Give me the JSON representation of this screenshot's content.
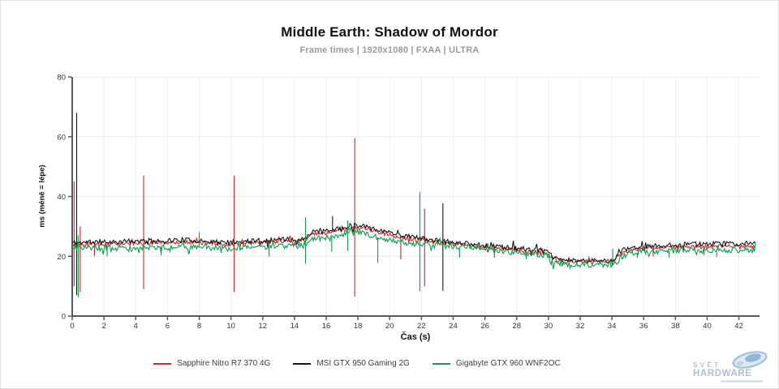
{
  "header": {
    "title": "Middle Earth: Shadow of Mordor",
    "subtitle": "Frame times | 1920x1080 | FXAA | ULTRA"
  },
  "watermark": {
    "line1": "SVĚT",
    "line2": "HARDWARE"
  },
  "colors": {
    "axis": "#5a5a5a",
    "grid_vertical": "#f0f0f0",
    "grid_horizontal": "#ebebeb",
    "tick_label": "#353535",
    "red_series": "#d2262b",
    "black_series": "#161616",
    "green_series": "#0d9d4d"
  },
  "chart_data": {
    "type": "line",
    "title": "Middle Earth: Shadow of Mordor",
    "subtitle": "Frame times | 1920x1080 | FXAA | ULTRA",
    "xlabel": "Čas (s)",
    "ylabel": "ms (méně = lépe)",
    "xlim": [
      0,
      43.3
    ],
    "ylim": [
      0,
      80
    ],
    "x_data_max": 43.1,
    "xticks": [
      0,
      2,
      4,
      6,
      8,
      10,
      12,
      14,
      16,
      18,
      20,
      22,
      24,
      26,
      28,
      30,
      32,
      34,
      36,
      38,
      40,
      42
    ],
    "yticks": [
      0,
      20,
      40,
      60,
      80
    ],
    "grid": true,
    "legend_position": "bottom",
    "series": [
      {
        "id": "r7-370",
        "name": "Sapphire Nitro R7 370 4G",
        "color": "#d2262b",
        "seed": 5,
        "jitter": 0.65,
        "baseline": [
          [
            0,
            24
          ],
          [
            1,
            24
          ],
          [
            3,
            24.2
          ],
          [
            5,
            24.5
          ],
          [
            7,
            24.8
          ],
          [
            9,
            24.3
          ],
          [
            9.8,
            23.8
          ],
          [
            11,
            24.5
          ],
          [
            13,
            25
          ],
          [
            14.6,
            25
          ],
          [
            15,
            27.3
          ],
          [
            16,
            27.8
          ],
          [
            17,
            28.8
          ],
          [
            17.7,
            29.6
          ],
          [
            18.4,
            29.6
          ],
          [
            19.5,
            27.8
          ],
          [
            20.5,
            26.5
          ],
          [
            21.5,
            25.8
          ],
          [
            23,
            24.6
          ],
          [
            25,
            23.6
          ],
          [
            27,
            22.6
          ],
          [
            29,
            21.6
          ],
          [
            29.9,
            21
          ],
          [
            30.4,
            18.7
          ],
          [
            31.5,
            18.3
          ],
          [
            33,
            18.2
          ],
          [
            34.2,
            18.5
          ],
          [
            34.7,
            21.3
          ],
          [
            36,
            22.7
          ],
          [
            38,
            23
          ],
          [
            40,
            23.2
          ],
          [
            43.1,
            23.3
          ]
        ],
        "spikes": [
          [
            0.12,
            45,
            10
          ],
          [
            0.5,
            30,
            8
          ],
          [
            1.4,
            null,
            20
          ],
          [
            4.5,
            47,
            9
          ],
          [
            10.2,
            47,
            8
          ],
          [
            17.8,
            59.5,
            6.5
          ],
          [
            20.7,
            null,
            19
          ],
          [
            22.2,
            36,
            10
          ],
          [
            26.6,
            null,
            19.5
          ],
          [
            36.6,
            null,
            20
          ],
          [
            39.8,
            null,
            20.3
          ]
        ]
      },
      {
        "id": "gtx-950",
        "name": "MSI GTX 950 Gaming 2G",
        "color": "#161616",
        "seed": 11,
        "jitter": 0.8,
        "baseline": [
          [
            0,
            24.6
          ],
          [
            1,
            24.7
          ],
          [
            3,
            24.9
          ],
          [
            5,
            25.2
          ],
          [
            7,
            25.5
          ],
          [
            9,
            24.9
          ],
          [
            9.8,
            24.3
          ],
          [
            11,
            25.1
          ],
          [
            13,
            25.6
          ],
          [
            14.6,
            25.6
          ],
          [
            15,
            28
          ],
          [
            16,
            28.4
          ],
          [
            17,
            29.4
          ],
          [
            17.7,
            30.4
          ],
          [
            18.4,
            30.4
          ],
          [
            19.5,
            28.5
          ],
          [
            20.5,
            27.2
          ],
          [
            21.5,
            26.4
          ],
          [
            23,
            25.2
          ],
          [
            25,
            24.2
          ],
          [
            27,
            23.2
          ],
          [
            29,
            22.2
          ],
          [
            29.9,
            21.6
          ],
          [
            30.4,
            19.2
          ],
          [
            31.5,
            18.6
          ],
          [
            33,
            18.5
          ],
          [
            34.2,
            18.8
          ],
          [
            34.7,
            22
          ],
          [
            36,
            23.3
          ],
          [
            38,
            23.8
          ],
          [
            40,
            24.1
          ],
          [
            43.1,
            24.5
          ]
        ],
        "spikes": [
          [
            0.28,
            68,
            7
          ],
          [
            16.4,
            33.4,
            null
          ],
          [
            23.35,
            37.7,
            8.5
          ]
        ]
      },
      {
        "id": "gtx-960",
        "name": "Gigabyte GTX 960 WNF2OC",
        "color": "#0d9d4d",
        "seed": 23,
        "jitter": 0.9,
        "baseline": [
          [
            0,
            23
          ],
          [
            1,
            22.6
          ],
          [
            3,
            22.7
          ],
          [
            5,
            22.9
          ],
          [
            7,
            23.1
          ],
          [
            9,
            22.9
          ],
          [
            9.8,
            22.5
          ],
          [
            11,
            23
          ],
          [
            13,
            23.3
          ],
          [
            14.6,
            23.5
          ],
          [
            15,
            25.9
          ],
          [
            16,
            26.2
          ],
          [
            17,
            27.3
          ],
          [
            17.9,
            28.2
          ],
          [
            18.6,
            27.3
          ],
          [
            19.5,
            26
          ],
          [
            20.5,
            24.9
          ],
          [
            21.5,
            24.2
          ],
          [
            23,
            23.5
          ],
          [
            25,
            22.9
          ],
          [
            26.4,
            22.2
          ],
          [
            26.7,
            21.6
          ],
          [
            28,
            21.2
          ],
          [
            29,
            20.8
          ],
          [
            29.9,
            20.3
          ],
          [
            30.4,
            17.7
          ],
          [
            31.5,
            17
          ],
          [
            33,
            16.8
          ],
          [
            34.2,
            17
          ],
          [
            34.7,
            20.3
          ],
          [
            36,
            21.6
          ],
          [
            38,
            21.9
          ],
          [
            40,
            22
          ],
          [
            43.1,
            22
          ]
        ],
        "spikes": [
          [
            0.38,
            27,
            6.3
          ],
          [
            2.2,
            null,
            20
          ],
          [
            5.6,
            null,
            20.3
          ],
          [
            8.0,
            28,
            null
          ],
          [
            12.4,
            null,
            19.9
          ],
          [
            14.7,
            33,
            17.5
          ],
          [
            16.35,
            null,
            21.5
          ],
          [
            17.35,
            32,
            21.8
          ],
          [
            19.25,
            null,
            17.8
          ],
          [
            21.9,
            41.5,
            8.4
          ],
          [
            24.4,
            null,
            19.5
          ],
          [
            28.6,
            null,
            19
          ],
          [
            34.05,
            22.5,
            null
          ],
          [
            35.6,
            null,
            19.5
          ],
          [
            37.6,
            null,
            19.6
          ],
          [
            40.6,
            null,
            19.8
          ]
        ]
      }
    ]
  }
}
